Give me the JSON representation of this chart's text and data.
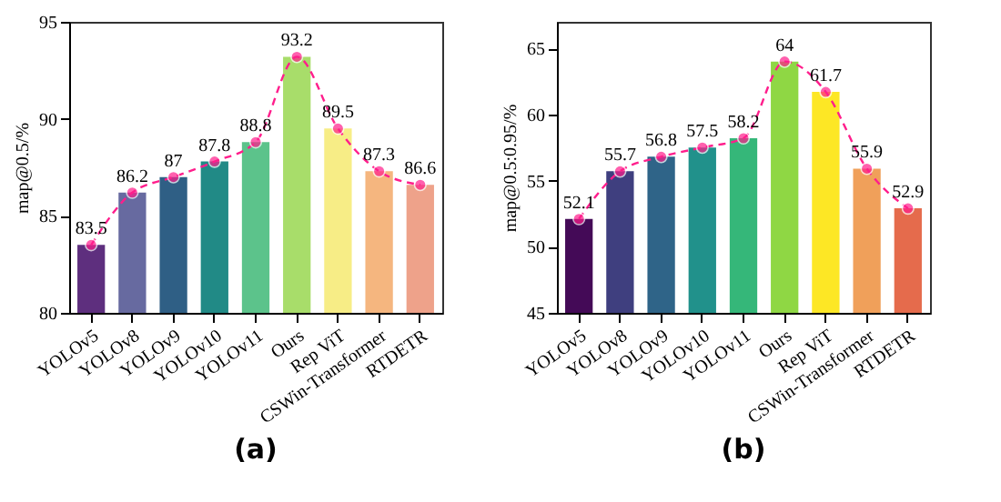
{
  "chart_data": [
    {
      "type": "bar",
      "ylabel": "map@0.5/%",
      "categories": [
        "YOLOv5",
        "YOLOv8",
        "YOLOv9",
        "YOLOv10",
        "YOLOv11",
        "Ours",
        "Rep ViT",
        "CSWin-Transformer",
        "RTDETR"
      ],
      "ylim": [
        80,
        95
      ],
      "yticks": [
        80,
        85,
        90,
        95
      ],
      "grid": false,
      "annotations": [
        "(a)"
      ],
      "series": [
        {
          "type": "bar",
          "colors": [
            "#5e2f7e",
            "#676aa0",
            "#2f5f85",
            "#218a86",
            "#5cc38b",
            "#a8dd6a",
            "#f7ed86",
            "#f5b67f",
            "#eea28a"
          ],
          "values": [
            83.5,
            86.2,
            87,
            87.8,
            88.8,
            93.2,
            89.5,
            87.3,
            86.6
          ],
          "value_labels": [
            "83.5",
            "86.2",
            "87",
            "87.8",
            "88.8",
            "93.2",
            "89.5",
            "87.3",
            "86.6"
          ]
        },
        {
          "type": "line",
          "color": "#ff1e8c",
          "marker": "circle",
          "line_style": "dashed",
          "values": [
            83.5,
            86.2,
            87,
            87.8,
            88.8,
            93.2,
            89.5,
            87.3,
            86.6
          ]
        }
      ]
    },
    {
      "type": "bar",
      "ylabel": "map@0.5:0.95/%",
      "categories": [
        "YOLOv5",
        "YOLOv8",
        "YOLOv9",
        "YOLOv10",
        "YOLOv11",
        "Ours",
        "Rep ViT",
        "CSWin-Transformer",
        "RTDETR"
      ],
      "ylim": [
        45,
        67
      ],
      "yticks": [
        45,
        50,
        55,
        60,
        65
      ],
      "grid": false,
      "annotations": [
        "(b)"
      ],
      "series": [
        {
          "type": "bar",
          "colors": [
            "#440a57",
            "#3f3f7f",
            "#2f6488",
            "#21918b",
            "#35b779",
            "#8fd744",
            "#fde725",
            "#f0a05a",
            "#e56b4c"
          ],
          "values": [
            52.1,
            55.7,
            56.8,
            57.5,
            58.2,
            64,
            61.7,
            55.9,
            52.9
          ],
          "value_labels": [
            "52.1",
            "55.7",
            "56.8",
            "57.5",
            "58.2",
            "64",
            "61.7",
            "55.9",
            "52.9"
          ]
        },
        {
          "type": "line",
          "color": "#ff1e8c",
          "marker": "circle",
          "line_style": "dashed",
          "values": [
            52.1,
            55.7,
            56.8,
            57.5,
            58.2,
            64,
            61.7,
            55.9,
            52.9
          ]
        }
      ]
    }
  ]
}
